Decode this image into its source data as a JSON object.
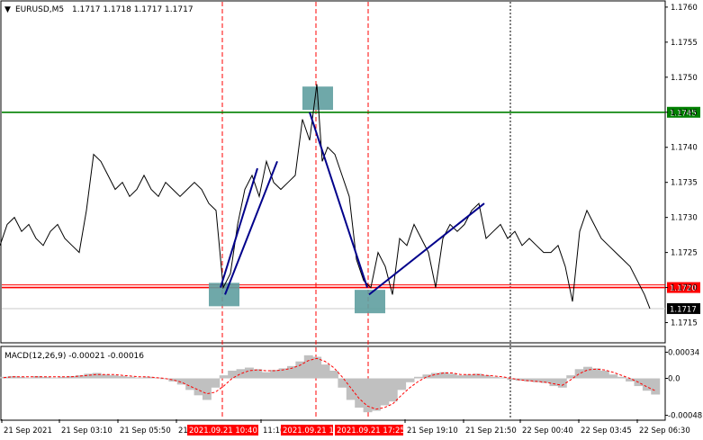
{
  "header": {
    "arrow": "▼",
    "symbol": "EURUSD,M5",
    "ohlc": "1.1717 1.1718 1.1717 1.1717"
  },
  "macd_header": {
    "label": "MACD(12,26,9) -0.00021 -0.00016"
  },
  "chart_data": [
    {
      "type": "line",
      "name": "price",
      "ylim": [
        1.17125,
        1.17605
      ],
      "y_ticks": [
        "1.1760",
        "1.1755",
        "1.1750",
        "1.1745",
        "1.1740",
        "1.1735",
        "1.1730",
        "1.1725",
        "1.1720",
        "1.1715"
      ],
      "x_ticks": [
        "21 Sep 2021",
        "21 Sep 03:10",
        "21 Sep 05:50",
        "21",
        "11:10",
        "21 Sep 19:10",
        "21 Sep 21:50",
        "22 Sep 00:40",
        "22 Sep 03:45",
        "22 Sep 06:30"
      ],
      "x_highlights": [
        "2021.09.21 10:40",
        "2021.09.21 1",
        "2021.09.21 17:25"
      ],
      "levels": [
        {
          "label": "1.1745",
          "value": 1.1745,
          "color": "#008000",
          "tag_bg": "#008000",
          "tag_fg": "#ffffff"
        },
        {
          "label": "1.1720",
          "value": 1.172,
          "color": "#ff0000",
          "tag_bg": "#ff0000",
          "tag_fg": "#ffffff"
        }
      ],
      "current_price": {
        "label": "1.1717",
        "value": 1.1717,
        "tag_bg": "#000000",
        "tag_fg": "#ffffff"
      },
      "line_color": "#000000",
      "x": [
        0,
        8,
        16,
        24,
        32,
        40,
        48,
        56,
        64,
        72,
        80,
        88,
        96,
        104,
        112,
        120,
        128,
        136,
        144,
        152,
        160,
        168,
        176,
        184,
        192,
        200,
        208,
        216,
        224,
        232,
        240,
        248,
        256,
        264,
        272,
        280,
        288,
        296,
        304,
        312,
        320,
        328,
        336,
        344,
        352,
        358,
        364,
        372,
        380,
        388,
        396,
        404,
        412,
        420,
        428,
        436,
        444,
        452,
        460,
        468,
        476,
        484,
        492,
        500,
        508,
        516,
        524,
        532,
        540,
        548,
        556,
        564,
        572,
        580,
        588,
        596,
        604,
        612,
        620,
        628,
        636,
        644,
        652,
        660,
        668,
        676,
        684,
        692,
        700,
        708,
        716,
        722
      ],
      "y": [
        1.1726,
        1.1729,
        1.173,
        1.1728,
        1.1729,
        1.1727,
        1.1726,
        1.1728,
        1.1729,
        1.1727,
        1.1726,
        1.1725,
        1.1731,
        1.1739,
        1.1738,
        1.1736,
        1.1734,
        1.1735,
        1.1733,
        1.1734,
        1.1736,
        1.1734,
        1.1733,
        1.1735,
        1.1734,
        1.1733,
        1.1734,
        1.1735,
        1.1734,
        1.1732,
        1.1731,
        1.172,
        1.1722,
        1.1729,
        1.1734,
        1.1736,
        1.1733,
        1.1738,
        1.1735,
        1.1734,
        1.1735,
        1.1736,
        1.1744,
        1.1741,
        1.1749,
        1.1738,
        1.174,
        1.1739,
        1.1736,
        1.1733,
        1.1724,
        1.1721,
        1.172,
        1.1725,
        1.1723,
        1.1719,
        1.1727,
        1.1726,
        1.1729,
        1.1727,
        1.1725,
        1.172,
        1.1727,
        1.1729,
        1.1728,
        1.1729,
        1.1731,
        1.1732,
        1.1727,
        1.1728,
        1.1729,
        1.1727,
        1.1728,
        1.1726,
        1.1727,
        1.1726,
        1.1725,
        1.1725,
        1.1726,
        1.1723,
        1.1718,
        1.1728,
        1.1731,
        1.1729,
        1.1727,
        1.1726,
        1.1725,
        1.1724,
        1.1723,
        1.1721,
        1.1719,
        1.1717
      ]
    },
    {
      "type": "bar",
      "name": "macd",
      "ylim": [
        -0.00052,
        0.00038
      ],
      "y_ticks": [
        "0.00034",
        "0.0",
        "-0.00048"
      ],
      "bar_color": "#c0c0c0",
      "signal_color": "#ff0000",
      "values": [
        2e-05,
        3e-05,
        2e-05,
        1e-05,
        3e-05,
        2e-05,
        1e-05,
        2e-05,
        3e-05,
        4e-05,
        6e-05,
        7e-05,
        5e-05,
        4e-05,
        3e-05,
        2e-05,
        1e-05,
        2e-05,
        1e-05,
        -1e-05,
        -4e-05,
        -8e-05,
        -0.00015,
        -0.00022,
        -0.00028,
        -0.00012,
        4e-05,
        0.0001,
        0.00012,
        0.00014,
        0.00012,
        8e-05,
        0.00011,
        0.00013,
        0.00016,
        0.00022,
        0.0003,
        0.00028,
        0.00018,
        0.0001,
        -0.00012,
        -0.00028,
        -0.00038,
        -0.00044,
        -0.00042,
        -0.00035,
        -0.0003,
        -0.00015,
        -5e-05,
        2e-05,
        5e-05,
        7e-05,
        8e-05,
        6e-05,
        4e-05,
        5e-05,
        6e-05,
        4e-05,
        2e-05,
        1e-05,
        -2e-05,
        -3e-05,
        -4e-05,
        -5e-05,
        -6e-05,
        -0.0001,
        -0.00012,
        4e-05,
        0.00012,
        0.00015,
        0.00013,
        0.0001,
        5e-05,
        2e-05,
        -4e-05,
        -0.0001,
        -0.00016,
        -0.00021
      ],
      "signal": [
        1e-05,
        2e-05,
        2e-05,
        2e-05,
        2e-05,
        2e-05,
        2e-05,
        2e-05,
        2e-05,
        3e-05,
        4e-05,
        5e-05,
        5e-05,
        5e-05,
        4e-05,
        3e-05,
        2e-05,
        2e-05,
        1e-05,
        0.0,
        -2e-05,
        -5e-05,
        -0.0001,
        -0.00015,
        -0.0002,
        -0.00018,
        -0.0001,
        0.0,
        6e-05,
        0.0001,
        0.00011,
        0.0001,
        0.0001,
        0.00011,
        0.00013,
        0.00017,
        0.00023,
        0.00026,
        0.00022,
        0.00014,
        2e-05,
        -0.00012,
        -0.00026,
        -0.00036,
        -0.0004,
        -0.00038,
        -0.00033,
        -0.00022,
        -0.00012,
        -4e-05,
        2e-05,
        5e-05,
        7e-05,
        7e-05,
        5e-05,
        5e-05,
        5e-05,
        4e-05,
        3e-05,
        2e-05,
        0.0,
        -2e-05,
        -3e-05,
        -4e-05,
        -5e-05,
        -7e-05,
        -9e-05,
        -2e-05,
        6e-05,
        0.00011,
        0.00012,
        0.00011,
        8e-05,
        4e-05,
        0.0,
        -5e-05,
        -0.00011,
        -0.00016
      ]
    }
  ],
  "annotations": {
    "boxes": [
      {
        "name": "buy-signal-box-1",
        "x_bar": 248,
        "price": 1.1719
      },
      {
        "name": "sell-signal-box",
        "x_bar": 352,
        "price": 1.1747
      },
      {
        "name": "buy-signal-box-2",
        "x_bar": 410,
        "price": 1.1718
      }
    ],
    "trend_lines": [
      {
        "name": "trend-line-1",
        "from": [
          245,
          1.172
        ],
        "to": [
          286,
          1.1737
        ]
      },
      {
        "name": "trend-line-2",
        "from": [
          250,
          1.1719
        ],
        "to": [
          308,
          1.1738
        ]
      },
      {
        "name": "trend-line-3",
        "from": [
          344,
          1.1745
        ],
        "to": [
          408,
          1.172
        ]
      },
      {
        "name": "trend-line-4",
        "from": [
          410,
          1.1719
        ],
        "to": [
          538,
          1.1732
        ]
      }
    ],
    "box_color": "#5f9ea0",
    "trend_color": "#00008b"
  },
  "vlines": [
    {
      "name": "vline-red-1",
      "x_bar": 247,
      "color": "#ff0000"
    },
    {
      "name": "vline-red-2",
      "x_bar": 351,
      "color": "#ff0000"
    },
    {
      "name": "vline-red-3",
      "x_bar": 409,
      "color": "#ff0000"
    },
    {
      "name": "vline-black-1",
      "x_bar": 567,
      "color": "#000000"
    }
  ]
}
